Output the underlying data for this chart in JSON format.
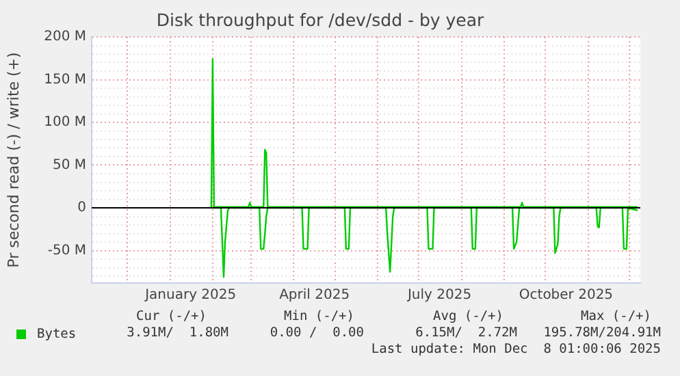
{
  "chart_data": {
    "type": "line",
    "title": "Disk throughput for /dev/sdd - by year",
    "ylabel": "Pr second read (-) / write (+)",
    "xlim": [
      "2024-11-05",
      "2025-12-09"
    ],
    "xticks": [
      {
        "value": "2024-12-01",
        "label": null
      },
      {
        "value": "2025-01-01",
        "label": null
      },
      {
        "value": "2025-01-16",
        "label": "January 2025"
      },
      {
        "value": "2025-02-01",
        "label": null
      },
      {
        "value": "2025-03-01",
        "label": null
      },
      {
        "value": "2025-04-01",
        "label": null
      },
      {
        "value": "2025-04-16",
        "label": "April 2025"
      },
      {
        "value": "2025-05-01",
        "label": null
      },
      {
        "value": "2025-06-01",
        "label": null
      },
      {
        "value": "2025-07-01",
        "label": null
      },
      {
        "value": "2025-07-16",
        "label": "July 2025"
      },
      {
        "value": "2025-08-01",
        "label": null
      },
      {
        "value": "2025-09-01",
        "label": null
      },
      {
        "value": "2025-10-01",
        "label": null
      },
      {
        "value": "2025-10-16",
        "label": "October 2025"
      },
      {
        "value": "2025-11-01",
        "label": null
      },
      {
        "value": "2025-12-01",
        "label": null
      }
    ],
    "ylim": [
      -88,
      200
    ],
    "yticks": [
      {
        "value": -80,
        "label": null
      },
      {
        "value": -70,
        "label": null
      },
      {
        "value": -60,
        "label": null
      },
      {
        "value": -50,
        "label": "-50 M"
      },
      {
        "value": -40,
        "label": null
      },
      {
        "value": -30,
        "label": null
      },
      {
        "value": -20,
        "label": null
      },
      {
        "value": -10,
        "label": null
      },
      {
        "value": 0,
        "label": "0"
      },
      {
        "value": 10,
        "label": null
      },
      {
        "value": 20,
        "label": null
      },
      {
        "value": 30,
        "label": null
      },
      {
        "value": 40,
        "label": null
      },
      {
        "value": 50,
        "label": "50 M"
      },
      {
        "value": 60,
        "label": null
      },
      {
        "value": 70,
        "label": null
      },
      {
        "value": 80,
        "label": null
      },
      {
        "value": 90,
        "label": null
      },
      {
        "value": 100,
        "label": "100 M"
      },
      {
        "value": 110,
        "label": null
      },
      {
        "value": 120,
        "label": null
      },
      {
        "value": 130,
        "label": null
      },
      {
        "value": 140,
        "label": null
      },
      {
        "value": 150,
        "label": "150 M"
      },
      {
        "value": 160,
        "label": null
      },
      {
        "value": 170,
        "label": null
      },
      {
        "value": 180,
        "label": null
      },
      {
        "value": 190,
        "label": null
      },
      {
        "value": 200,
        "label": "200 M"
      }
    ],
    "grid": true,
    "legend": "bottom left",
    "marker": "none",
    "line_style": "solid",
    "ref_lines": [
      {
        "axis": "y",
        "value": 0,
        "color": "#000000"
      }
    ],
    "series": [
      {
        "name": "Bytes",
        "color": "#00cc00",
        "x": [
          "2025-01-31",
          "2025-02-01",
          "2025-02-02",
          "2025-02-27",
          "2025-02-28",
          "2025-03-01",
          "2025-03-10",
          "2025-03-11",
          "2025-03-12",
          "2025-03-13",
          "2025-09-13",
          "2025-09-14",
          "2025-09-15",
          "2025-12-07"
        ],
        "values": [
          0,
          174,
          1,
          1,
          6,
          1,
          1,
          68,
          64,
          1,
          1,
          6,
          1,
          1
        ]
      },
      {
        "color": "#00cc00",
        "x": [
          "2025-02-01",
          "2025-02-07",
          "2025-02-09",
          "2025-02-10",
          "2025-02-12",
          "2025-02-13",
          "2025-03-07",
          "2025-03-08",
          "2025-03-10",
          "2025-03-11",
          "2025-03-12",
          "2025-03-13",
          "2025-04-07",
          "2025-04-08",
          "2025-04-11",
          "2025-04-12",
          "2025-05-08",
          "2025-05-09",
          "2025-05-11",
          "2025-05-12",
          "2025-06-07",
          "2025-06-08",
          "2025-06-10",
          "2025-06-12",
          "2025-06-13",
          "2025-07-07",
          "2025-07-08",
          "2025-07-11",
          "2025-07-12",
          "2025-08-08",
          "2025-08-09",
          "2025-08-11",
          "2025-08-12",
          "2025-09-07",
          "2025-09-08",
          "2025-09-10",
          "2025-09-11",
          "2025-09-12",
          "2025-10-07",
          "2025-10-08",
          "2025-10-10",
          "2025-10-11",
          "2025-10-12",
          "2025-11-07",
          "2025-11-08",
          "2025-11-09",
          "2025-11-10",
          "2025-11-26",
          "2025-11-27",
          "2025-11-29",
          "2025-11-30",
          "2025-12-07"
        ],
        "values": [
          0,
          0,
          -81,
          -40,
          -3,
          0,
          0,
          -48,
          -48,
          -30,
          -10,
          0,
          0,
          -48,
          -48,
          0,
          0,
          -48,
          -48,
          0,
          0,
          -30,
          -75,
          -10,
          0,
          0,
          -48,
          -48,
          0,
          0,
          -48,
          -48,
          0,
          0,
          -48,
          -40,
          -20,
          0,
          0,
          -53,
          -42,
          -10,
          0,
          0,
          -22,
          -23,
          0,
          0,
          -48,
          -48,
          0,
          -3
        ]
      }
    ],
    "annotations": [
      "Cur (-/+)",
      "Min (-/+)",
      "Avg (-/+)",
      "Max (-/+)",
      "3.91M/  1.80M",
      "0.00 /  0.00",
      "6.15M/  2.72M",
      "195.78M/204.91M",
      "Last update: Mon Dec  8 01:00:06 2025"
    ]
  }
}
